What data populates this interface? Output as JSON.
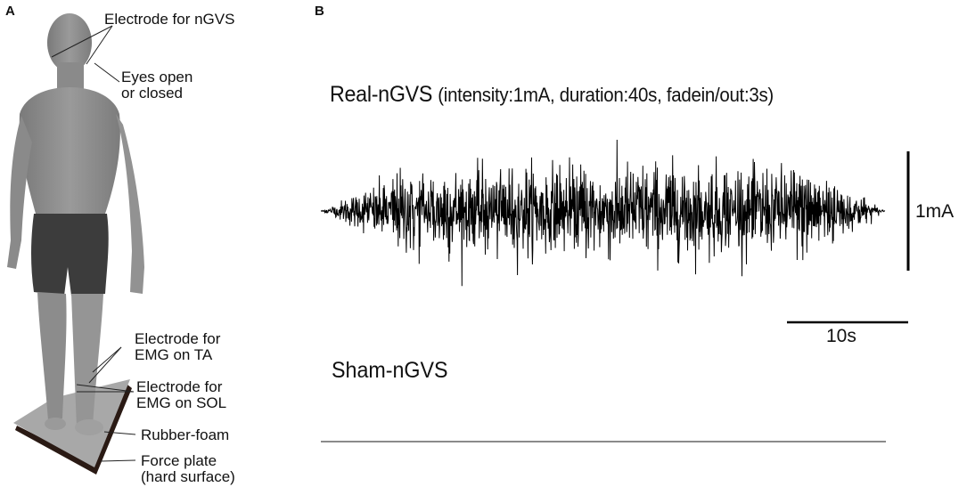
{
  "panel_a": {
    "letter": "A",
    "callouts": [
      {
        "id": "electrode-ngvs",
        "lines": [
          "Electrode for nGVS"
        ]
      },
      {
        "id": "eyes",
        "lines": [
          "Eyes open",
          "or closed"
        ]
      },
      {
        "id": "electrode-emg-ta",
        "lines": [
          "Electrode for",
          "EMG on TA"
        ]
      },
      {
        "id": "electrode-emg-sol",
        "lines": [
          "Electrode for",
          "EMG on SOL"
        ]
      },
      {
        "id": "rubber-foam",
        "lines": [
          "Rubber-foam"
        ]
      },
      {
        "id": "force-plate",
        "lines": [
          "Force plate",
          "(hard surface)"
        ]
      }
    ]
  },
  "panel_b": {
    "letter": "B",
    "real": {
      "label": "Real-nGVS",
      "params": "(intensity:1mA, duration:40s, fadein/out:3s)"
    },
    "sham": {
      "label": "Sham-nGVS"
    },
    "scale_bars": {
      "vertical_label": "1mA",
      "horizontal_label": "10s"
    }
  },
  "colors": {
    "waveform": "#000000",
    "sham_line": "#8a8a8a",
    "figure_skin": "#8e8e8e",
    "figure_shorts": "#3a3a3a",
    "plate_top": "#a9a9a9",
    "plate_base": "#2a1a14"
  },
  "chart_data": {
    "type": "line",
    "title": "Real-nGVS (intensity:1mA, duration:40s, fadein/out:3s)",
    "series": [
      {
        "name": "Real-nGVS",
        "description": "Gaussian-like noise current, ±~0.5 mA peak envelope, 3 s linear fade-in and fade-out, 40 s total duration"
      },
      {
        "name": "Sham-nGVS",
        "description": "flat 0 mA line over the same 40 s"
      }
    ],
    "x_range_s": [
      0,
      40
    ],
    "fade_in_s": 3,
    "fade_out_s": 3,
    "intensity_mA": 1,
    "scale_bar_x": "10s",
    "scale_bar_y": "1mA",
    "grid": false
  }
}
